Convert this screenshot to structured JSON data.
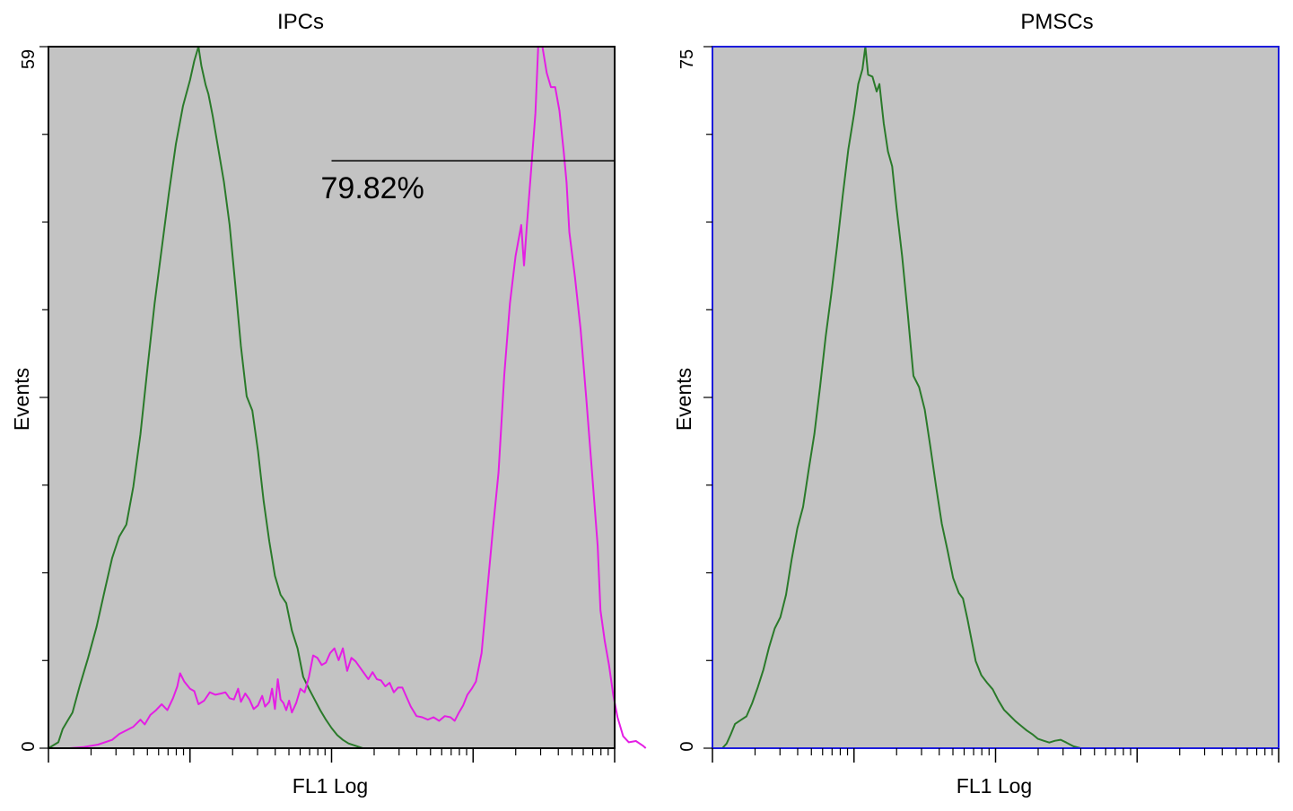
{
  "chart_data": [
    {
      "type": "line",
      "title": "IPCs",
      "xlabel": "FL1 Log",
      "ylabel": "Events",
      "ylim": [
        0,
        59
      ],
      "yticks_labeled": [
        "0",
        "59"
      ],
      "y_minor_ticks": 8,
      "x_scale": "log",
      "x_decades": 4,
      "grid": false,
      "colors": {
        "background": "#c3c3c3",
        "frame": "#000000"
      },
      "series": [
        {
          "color": "#2a7a2a",
          "points": [
            [
              0,
              0
            ],
            [
              0.07,
              0.5
            ],
            [
              0.1,
              1.6
            ],
            [
              0.13,
              2.2
            ],
            [
              0.17,
              3.0
            ],
            [
              0.22,
              5.2
            ],
            [
              0.28,
              7.6
            ],
            [
              0.34,
              10.2
            ],
            [
              0.4,
              13.4
            ],
            [
              0.45,
              16.0
            ],
            [
              0.5,
              17.8
            ],
            [
              0.55,
              18.8
            ],
            [
              0.6,
              22.0
            ],
            [
              0.65,
              26.4
            ],
            [
              0.7,
              32.0
            ],
            [
              0.75,
              37.4
            ],
            [
              0.8,
              42.0
            ],
            [
              0.85,
              46.6
            ],
            [
              0.9,
              50.8
            ],
            [
              0.95,
              54.0
            ],
            [
              1.0,
              56.2
            ],
            [
              1.03,
              57.8
            ],
            [
              1.06,
              59.0
            ],
            [
              1.08,
              57.4
            ],
            [
              1.11,
              55.8
            ],
            [
              1.13,
              55.0
            ],
            [
              1.16,
              53.2
            ],
            [
              1.2,
              50.4
            ],
            [
              1.24,
              47.6
            ],
            [
              1.28,
              44.0
            ],
            [
              1.32,
              39.0
            ],
            [
              1.36,
              33.8
            ],
            [
              1.4,
              29.6
            ],
            [
              1.44,
              28.4
            ],
            [
              1.48,
              25.0
            ],
            [
              1.52,
              20.8
            ],
            [
              1.56,
              17.4
            ],
            [
              1.6,
              14.5
            ],
            [
              1.64,
              12.9
            ],
            [
              1.68,
              12.2
            ],
            [
              1.72,
              9.9
            ],
            [
              1.76,
              8.4
            ],
            [
              1.8,
              6.0
            ],
            [
              1.84,
              5.0
            ],
            [
              1.88,
              4.1
            ],
            [
              1.92,
              3.2
            ],
            [
              1.96,
              2.4
            ],
            [
              2.0,
              1.7
            ],
            [
              2.04,
              1.1
            ],
            [
              2.08,
              0.7
            ],
            [
              2.12,
              0.4
            ],
            [
              2.17,
              0.2
            ],
            [
              2.22,
              0.0
            ],
            [
              4.0,
              0.0
            ]
          ]
        },
        {
          "color": "#e41ee4",
          "points": [
            [
              0,
              0
            ],
            [
              0.15,
              0
            ],
            [
              0.25,
              0.1
            ],
            [
              0.35,
              0.3
            ],
            [
              0.45,
              0.7
            ],
            [
              0.5,
              1.2
            ],
            [
              0.55,
              1.5
            ],
            [
              0.6,
              1.8
            ],
            [
              0.65,
              2.4
            ],
            [
              0.68,
              2.0
            ],
            [
              0.72,
              2.8
            ],
            [
              0.76,
              3.2
            ],
            [
              0.8,
              3.7
            ],
            [
              0.84,
              3.2
            ],
            [
              0.88,
              4.2
            ],
            [
              0.91,
              5.2
            ],
            [
              0.93,
              6.3
            ],
            [
              0.96,
              5.6
            ],
            [
              1.0,
              5.0
            ],
            [
              1.03,
              4.8
            ],
            [
              1.06,
              3.7
            ],
            [
              1.1,
              4.0
            ],
            [
              1.14,
              4.7
            ],
            [
              1.18,
              4.5
            ],
            [
              1.22,
              4.6
            ],
            [
              1.25,
              4.7
            ],
            [
              1.28,
              4.2
            ],
            [
              1.31,
              4.1
            ],
            [
              1.34,
              5.0
            ],
            [
              1.36,
              3.9
            ],
            [
              1.39,
              4.6
            ],
            [
              1.42,
              4.1
            ],
            [
              1.45,
              3.3
            ],
            [
              1.48,
              3.6
            ],
            [
              1.51,
              4.4
            ],
            [
              1.53,
              3.5
            ],
            [
              1.56,
              3.9
            ],
            [
              1.58,
              5.0
            ],
            [
              1.6,
              3.3
            ],
            [
              1.62,
              5.8
            ],
            [
              1.64,
              4.1
            ],
            [
              1.66,
              3.8
            ],
            [
              1.68,
              3.2
            ],
            [
              1.7,
              4.0
            ],
            [
              1.72,
              3.0
            ],
            [
              1.75,
              3.8
            ],
            [
              1.78,
              5.0
            ],
            [
              1.81,
              4.7
            ],
            [
              1.84,
              6.0
            ],
            [
              1.87,
              7.8
            ],
            [
              1.9,
              7.6
            ],
            [
              1.93,
              7.0
            ],
            [
              1.96,
              7.2
            ],
            [
              1.99,
              8.0
            ],
            [
              2.02,
              8.4
            ],
            [
              2.05,
              7.4
            ],
            [
              2.08,
              8.4
            ],
            [
              2.11,
              6.5
            ],
            [
              2.14,
              7.6
            ],
            [
              2.17,
              7.3
            ],
            [
              2.2,
              6.8
            ],
            [
              2.23,
              6.3
            ],
            [
              2.26,
              5.8
            ],
            [
              2.29,
              6.4
            ],
            [
              2.32,
              5.8
            ],
            [
              2.35,
              5.7
            ],
            [
              2.38,
              5.2
            ],
            [
              2.41,
              5.5
            ],
            [
              2.44,
              4.7
            ],
            [
              2.47,
              5.1
            ],
            [
              2.5,
              5.1
            ],
            [
              2.53,
              4.3
            ],
            [
              2.56,
              3.5
            ],
            [
              2.6,
              2.7
            ],
            [
              2.64,
              2.6
            ],
            [
              2.68,
              2.4
            ],
            [
              2.72,
              2.6
            ],
            [
              2.76,
              2.3
            ],
            [
              2.8,
              2.7
            ],
            [
              2.84,
              2.6
            ],
            [
              2.87,
              2.3
            ],
            [
              2.9,
              3.0
            ],
            [
              2.93,
              3.6
            ],
            [
              2.96,
              4.5
            ],
            [
              2.99,
              5.0
            ],
            [
              3.02,
              5.6
            ],
            [
              3.06,
              8.0
            ],
            [
              3.1,
              13.2
            ],
            [
              3.14,
              18.4
            ],
            [
              3.18,
              23.2
            ],
            [
              3.22,
              31.4
            ],
            [
              3.26,
              37.4
            ],
            [
              3.3,
              41.4
            ],
            [
              3.34,
              44.0
            ],
            [
              3.36,
              40.6
            ],
            [
              3.38,
              44.0
            ],
            [
              3.41,
              48.6
            ],
            [
              3.44,
              53.4
            ],
            [
              3.46,
              59.0
            ],
            [
              3.49,
              59.0
            ],
            [
              3.52,
              56.8
            ],
            [
              3.55,
              55.6
            ],
            [
              3.58,
              55.6
            ],
            [
              3.61,
              53.6
            ],
            [
              3.64,
              50.2
            ],
            [
              3.66,
              47.6
            ],
            [
              3.68,
              43.4
            ],
            [
              3.72,
              39.6
            ],
            [
              3.76,
              35.2
            ],
            [
              3.8,
              29.4
            ],
            [
              3.84,
              23.2
            ],
            [
              3.88,
              17.0
            ],
            [
              3.9,
              11.6
            ],
            [
              3.93,
              9.0
            ],
            [
              3.96,
              7.0
            ],
            [
              3.99,
              4.5
            ],
            [
              4.02,
              2.6
            ],
            [
              4.06,
              1.0
            ],
            [
              4.1,
              0.5
            ],
            [
              4.15,
              0.6
            ],
            [
              4.2,
              0.2
            ],
            [
              4.22,
              0.0
            ]
          ]
        }
      ],
      "gate": {
        "x_start": 2.0,
        "x_end": 4.0,
        "y": 49.4,
        "label": "79.82%"
      }
    },
    {
      "type": "line",
      "title": "PMSCs",
      "xlabel": "FL1 Log",
      "ylabel": "Events",
      "ylim": [
        0,
        75
      ],
      "yticks_labeled": [
        "0",
        "75"
      ],
      "y_minor_ticks": 8,
      "x_scale": "log",
      "x_decades": 4,
      "grid": false,
      "colors": {
        "background": "#c3c3c3",
        "frame": "#1c1cdc"
      },
      "series": [
        {
          "color": "#2a7a2a",
          "points": [
            [
              0,
              0
            ],
            [
              0.07,
              0
            ],
            [
              0.1,
              0.5
            ],
            [
              0.13,
              1.5
            ],
            [
              0.16,
              2.6
            ],
            [
              0.2,
              3.0
            ],
            [
              0.24,
              3.4
            ],
            [
              0.28,
              4.8
            ],
            [
              0.32,
              6.5
            ],
            [
              0.36,
              8.4
            ],
            [
              0.4,
              10.8
            ],
            [
              0.44,
              12.8
            ],
            [
              0.48,
              14.0
            ],
            [
              0.52,
              16.4
            ],
            [
              0.56,
              20.2
            ],
            [
              0.6,
              23.5
            ],
            [
              0.64,
              25.8
            ],
            [
              0.68,
              29.8
            ],
            [
              0.72,
              33.6
            ],
            [
              0.76,
              38.6
            ],
            [
              0.8,
              44.0
            ],
            [
              0.84,
              48.6
            ],
            [
              0.88,
              53.6
            ],
            [
              0.92,
              59.0
            ],
            [
              0.96,
              64.0
            ],
            [
              1.0,
              67.8
            ],
            [
              1.03,
              71.0
            ],
            [
              1.06,
              72.6
            ],
            [
              1.08,
              75.0
            ],
            [
              1.1,
              72.0
            ],
            [
              1.13,
              71.8
            ],
            [
              1.16,
              70.2
            ],
            [
              1.18,
              71.0
            ],
            [
              1.21,
              66.8
            ],
            [
              1.24,
              63.8
            ],
            [
              1.27,
              62.2
            ],
            [
              1.3,
              57.8
            ],
            [
              1.34,
              52.6
            ],
            [
              1.38,
              46.4
            ],
            [
              1.42,
              39.8
            ],
            [
              1.46,
              38.6
            ],
            [
              1.5,
              36.2
            ],
            [
              1.54,
              32.2
            ],
            [
              1.58,
              28.0
            ],
            [
              1.62,
              24.0
            ],
            [
              1.66,
              21.2
            ],
            [
              1.7,
              18.2
            ],
            [
              1.74,
              16.6
            ],
            [
              1.77,
              16.0
            ],
            [
              1.8,
              13.9
            ],
            [
              1.83,
              11.6
            ],
            [
              1.86,
              9.3
            ],
            [
              1.9,
              7.8
            ],
            [
              1.94,
              7.0
            ],
            [
              1.98,
              6.3
            ],
            [
              2.02,
              5.1
            ],
            [
              2.06,
              4.1
            ],
            [
              2.1,
              3.5
            ],
            [
              2.14,
              2.9
            ],
            [
              2.18,
              2.4
            ],
            [
              2.22,
              1.9
            ],
            [
              2.26,
              1.5
            ],
            [
              2.3,
              1.0
            ],
            [
              2.34,
              0.8
            ],
            [
              2.38,
              0.6
            ],
            [
              2.42,
              0.8
            ],
            [
              2.46,
              0.9
            ],
            [
              2.5,
              0.6
            ],
            [
              2.55,
              0.2
            ],
            [
              2.6,
              0
            ],
            [
              4.0,
              0
            ]
          ]
        }
      ]
    }
  ]
}
